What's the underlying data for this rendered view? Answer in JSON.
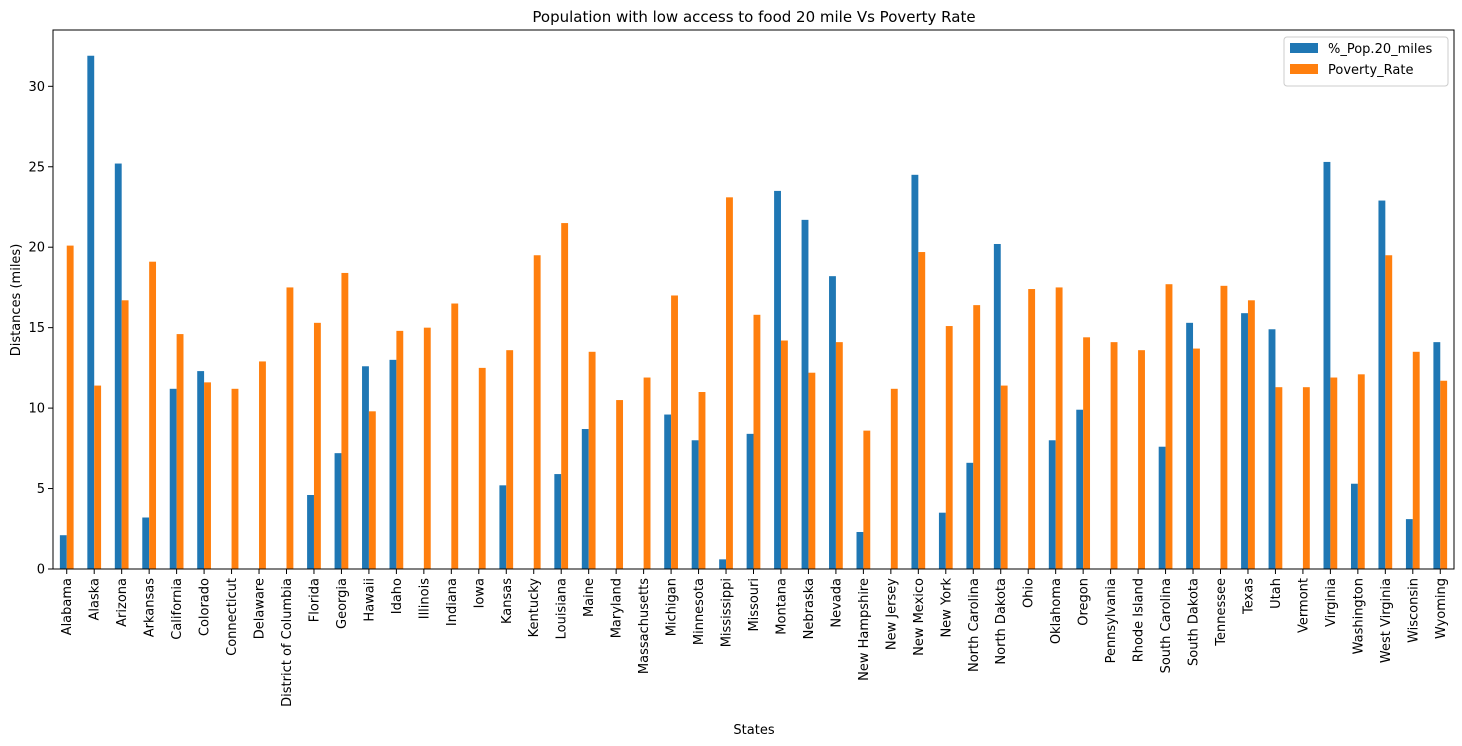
{
  "chart_data": {
    "type": "bar",
    "title": "Population with low access to food 20 mile Vs Poverty Rate",
    "xlabel": "States",
    "ylabel": "Distances (miles)",
    "ylim": [
      0,
      33.5
    ],
    "yticks": [
      0,
      5,
      10,
      15,
      20,
      25,
      30
    ],
    "grid": false,
    "legend_position": "top-right",
    "categories": [
      "Alabama",
      "Alaska",
      "Arizona",
      "Arkansas",
      "California",
      "Colorado",
      "Connecticut",
      "Delaware",
      "District of Columbia",
      "Florida",
      "Georgia",
      "Hawaii",
      "Idaho",
      "Illinois",
      "Indiana",
      "Iowa",
      "Kansas",
      "Kentucky",
      "Louisiana",
      "Maine",
      "Maryland",
      "Massachusetts",
      "Michigan",
      "Minnesota",
      "Mississippi",
      "Missouri",
      "Montana",
      "Nebraska",
      "Nevada",
      "New Hampshire",
      "New Jersey",
      "New Mexico",
      "New York",
      "North Carolina",
      "North Dakota",
      "Ohio",
      "Oklahoma",
      "Oregon",
      "Pennsylvania",
      "Rhode Island",
      "South Carolina",
      "South Dakota",
      "Tennessee",
      "Texas",
      "Utah",
      "Vermont",
      "Virginia",
      "Washington",
      "West Virginia",
      "Wisconsin",
      "Wyoming"
    ],
    "series": [
      {
        "name": "%_Pop.20_miles",
        "color": "#1f77b4",
        "values": [
          2.1,
          31.9,
          25.2,
          3.2,
          11.2,
          12.3,
          0,
          0,
          0,
          4.6,
          7.2,
          12.6,
          13.0,
          0,
          0,
          0,
          5.2,
          0,
          5.9,
          8.7,
          0,
          0,
          9.6,
          8.0,
          0.6,
          8.4,
          23.5,
          21.7,
          18.2,
          2.3,
          0,
          24.5,
          3.5,
          6.6,
          20.2,
          0,
          8.0,
          9.9,
          0,
          0,
          7.6,
          15.3,
          0,
          15.9,
          14.9,
          0,
          25.3,
          5.3,
          22.9,
          3.1,
          14.1
        ]
      },
      {
        "name": "Poverty_Rate",
        "color": "#ff7f0e",
        "values": [
          20.1,
          11.4,
          16.7,
          19.1,
          14.6,
          11.6,
          11.2,
          12.9,
          17.5,
          15.3,
          18.4,
          9.8,
          14.8,
          15.0,
          16.5,
          12.5,
          13.6,
          19.5,
          21.5,
          13.5,
          10.5,
          11.9,
          17.0,
          11.0,
          23.1,
          15.8,
          14.2,
          12.2,
          14.1,
          8.6,
          11.2,
          19.7,
          15.1,
          16.4,
          11.4,
          17.4,
          17.5,
          14.4,
          14.1,
          13.6,
          17.7,
          13.7,
          17.6,
          16.7,
          11.3,
          11.3,
          11.9,
          12.1,
          19.5,
          13.5,
          11.7
        ]
      }
    ]
  }
}
